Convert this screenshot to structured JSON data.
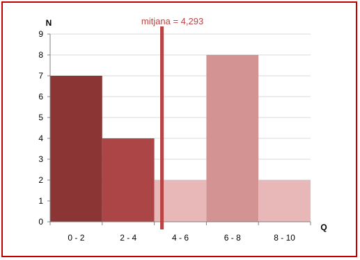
{
  "chart_data": {
    "type": "bar",
    "title": "",
    "xlabel": "Q",
    "ylabel": "N",
    "categories": [
      "0 - 2",
      "2 - 4",
      "4 - 6",
      "6 - 8",
      "8 - 10"
    ],
    "values": [
      7,
      4,
      2,
      8,
      2
    ],
    "bar_colors": [
      "#8b3535",
      "#ac4545",
      "#e8b8b8",
      "#d49393",
      "#e8b8b8"
    ],
    "ylim": [
      0,
      9
    ],
    "yticks": [
      "0",
      "1",
      "2",
      "3",
      "4",
      "5",
      "6",
      "7",
      "8",
      "9"
    ],
    "grid": true,
    "annotation": {
      "label": "mitjana = 4,293",
      "x_value": 4.293,
      "color": "#b84444"
    },
    "frame_color": "#c00000",
    "grid_color": "#d9d9d9"
  }
}
